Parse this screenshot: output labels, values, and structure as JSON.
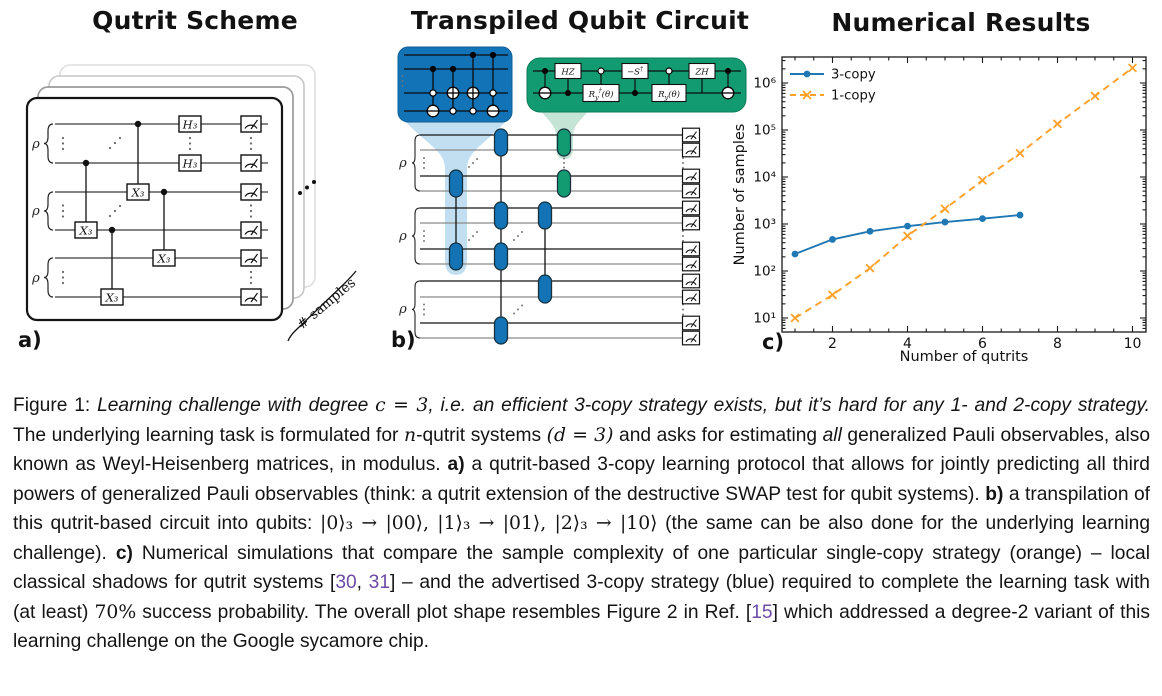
{
  "colors": {
    "blue": "#1373b5",
    "green": "#129b70",
    "light_blue": "#b7d8ee",
    "light_green": "#bee2d2",
    "chart_blue": "#1f77b4",
    "chart_orange": "#ffa028",
    "ref_purple": "#6c4ba6"
  },
  "panels": {
    "a": {
      "label": "a)",
      "title": "Qutrit Scheme",
      "rho": "ρ",
      "gate_h": "H₃",
      "gate_x": "X₃",
      "samples_label": "# samples"
    },
    "b": {
      "label": "b)",
      "title": "Transpiled Qubit Circuit",
      "rho": "ρ",
      "gates": {
        "hz": "HZ",
        "zh": "ZH",
        "ms": {
          "base": "−S",
          "sup": "†"
        },
        "ry_dag": {
          "base": "R",
          "sub": "y",
          "sup": "†",
          "arg": "(θ)"
        },
        "ry": {
          "base": "R",
          "sub": "y",
          "arg": "(θ)"
        }
      }
    },
    "c": {
      "label": "c)",
      "title": "Numerical Results"
    }
  },
  "chart_data": {
    "type": "line",
    "title": "Numerical Results",
    "xlabel": "Number of qutrits",
    "ylabel": "Number of samples",
    "x_major_ticks": [
      2,
      4,
      6,
      8,
      10
    ],
    "xlim": [
      0.55,
      10.35
    ],
    "y_scale": "log",
    "y_major_ticks_exp": [
      1,
      2,
      3,
      4,
      5,
      6
    ],
    "y_tick_labels": [
      "10¹",
      "10²",
      "10³",
      "10⁴",
      "10⁵",
      "10⁶"
    ],
    "ylim_exp": [
      0.7,
      6.55
    ],
    "grid": false,
    "legend_position": "upper left",
    "series": [
      {
        "name": "3-copy",
        "color": "#1f77b4",
        "line": "solid",
        "marker": "circle",
        "x": [
          1,
          2,
          3,
          4,
          5,
          6,
          7
        ],
        "y": [
          230,
          470,
          700,
          900,
          1100,
          1300,
          1550
        ]
      },
      {
        "name": "1-copy",
        "color": "#ffa028",
        "line": "dashed",
        "marker": "x",
        "x": [
          1,
          2,
          3,
          4,
          5,
          6,
          7,
          8,
          9,
          10
        ],
        "y": [
          10,
          31,
          115,
          560,
          2100,
          8500,
          32000,
          135000,
          530000,
          2100000
        ]
      }
    ]
  },
  "caption": {
    "segments": [
      {
        "t": "Figure 1:  ",
        "s": "n"
      },
      {
        "t": "Learning challenge with degree ",
        "s": "i"
      },
      {
        "t": "c = 3",
        "s": "m"
      },
      {
        "t": ", i.e. an efficient 3-copy strategy exists, but it’s hard for any 1- and 2-copy strategy.",
        "s": "i"
      },
      {
        "t": "  The underlying learning task is formulated for ",
        "s": "n"
      },
      {
        "t": "n",
        "s": "m"
      },
      {
        "t": "-qutrit systems ",
        "s": "n"
      },
      {
        "t": "(d = 3)",
        "s": "m"
      },
      {
        "t": " and asks for estimating ",
        "s": "n"
      },
      {
        "t": "all",
        "s": "i"
      },
      {
        "t": " generalized Pauli observables, also known as Weyl-Heisenberg matrices, in modulus. ",
        "s": "n"
      },
      {
        "t": "a)",
        "s": "b"
      },
      {
        "t": " a qutrit-based 3-copy learning protocol that allows for jointly predicting all third powers of generalized Pauli observables (think: a qutrit extension of the destructive SWAP test for qubit systems). ",
        "s": "n"
      },
      {
        "t": "b)",
        "s": "b"
      },
      {
        "t": " a transpilation of this qutrit-based circuit into qubits: ",
        "s": "n"
      },
      {
        "t": "|0⟩₃ → |00⟩, |1⟩₃ → |01⟩, |2⟩₃ → |10⟩",
        "s": "mu"
      },
      {
        "t": " (the same can be also done for the underlying learning challenge). ",
        "s": "n"
      },
      {
        "t": "c)",
        "s": "b"
      },
      {
        "t": " Numerical simulations that compare the sample complexity of one particular single-copy strategy (orange) – local classical shadows for qutrit systems [",
        "s": "n"
      },
      {
        "t": "30",
        "s": "r"
      },
      {
        "t": ", ",
        "s": "n"
      },
      {
        "t": "31",
        "s": "r"
      },
      {
        "t": "] – and the advertised 3-copy strategy (blue) required to complete the learning task with (at least) ",
        "s": "n"
      },
      {
        "t": "70%",
        "s": "mu"
      },
      {
        "t": " success probability.  The overall plot shape resembles Figure 2 in Ref. [",
        "s": "n"
      },
      {
        "t": "15",
        "s": "r"
      },
      {
        "t": "] which addressed a degree-2 variant of this learning challenge on the Google sycamore chip.",
        "s": "n"
      }
    ]
  }
}
